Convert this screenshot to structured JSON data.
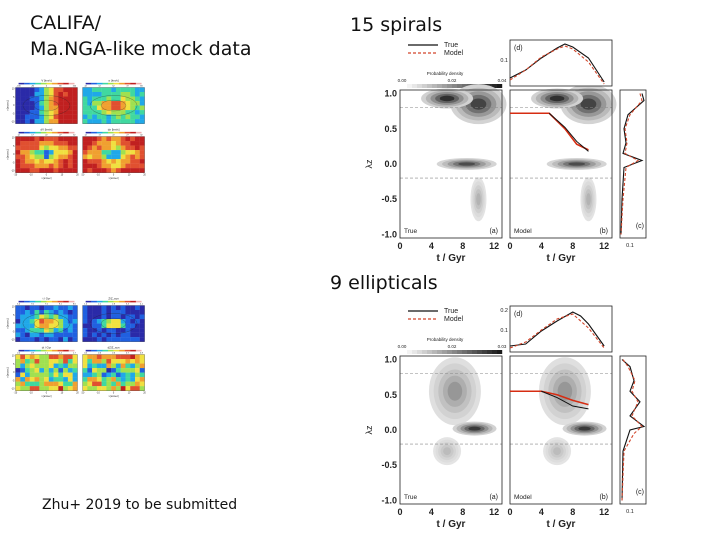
{
  "slide": {
    "title_line1": "CALIFA/",
    "title_line2": "Ma.NGA-like mock data",
    "label_spirals": "15 spirals",
    "label_ellipticals": "9 ellipticals",
    "credit": "Zhu+ 2019 to be submitted"
  },
  "maps_top": {
    "titles": [
      "V [km/s]",
      "σ [km/s]",
      "dV [km/s]",
      "dσ [km/s]"
    ],
    "cbar_ticks": [
      [
        "-180",
        "-80",
        "0",
        "80",
        "160"
      ],
      [
        "42",
        "52",
        "62",
        "72",
        "83"
      ],
      [
        "12",
        "17",
        "22",
        "27",
        "32"
      ],
      [
        "12",
        "17",
        "22",
        "27",
        "32"
      ]
    ],
    "yticks": [
      "10",
      "5",
      "0",
      "-5",
      "-10"
    ],
    "xticks": [
      "-20",
      "-10",
      "0",
      "10",
      "20"
    ],
    "ylabel": "y [arcsec]",
    "xlabel": "x [arcsec]"
  },
  "maps_bottom": {
    "titles": [
      "t / Gyr",
      "Z/Z_sun",
      "dt / Gyr",
      "dZ/Z_sun"
    ],
    "cbar_ticks": [
      [
        "6.4",
        "7.0",
        "7.5",
        "8.1",
        "8.6"
      ],
      [
        "1.4",
        "2.1",
        "2.8",
        "3.4",
        "4.1"
      ],
      [
        "0.5",
        "0.9",
        "1.1",
        "1.4",
        "1.7"
      ],
      [
        "0.5",
        "0.6",
        "0.6",
        "0.7",
        "0.8"
      ]
    ],
    "yticks": [
      "10",
      "5",
      "0",
      "-5",
      "-10"
    ],
    "xticks": [
      "-20",
      "-10",
      "0",
      "10",
      "20"
    ],
    "ylabel": "y [arcsec]",
    "xlabel": "x [arcsec]"
  },
  "spiral_plot": {
    "legend": [
      "True",
      "Model"
    ],
    "prob_label": "Probability density",
    "prob_ticks": [
      "0.00",
      "0.02",
      "0.04"
    ],
    "yticks": [
      "1.0",
      "0.5",
      "0.0",
      "-0.5",
      "-1.0"
    ],
    "xticks": [
      "0",
      "4",
      "8",
      "12"
    ],
    "ylabel": "λz",
    "xlabel": "t / Gyr",
    "panel_labels": [
      "(a)",
      "(b)",
      "(c)",
      "(d)"
    ],
    "panel_names": [
      "True",
      "Model"
    ],
    "d_tick": "0.1",
    "c_tick": "0.1"
  },
  "elliptical_plot": {
    "legend": [
      "True",
      "Model"
    ],
    "prob_label": "Probability density",
    "prob_ticks": [
      "0.00",
      "0.02",
      "0.03"
    ],
    "yticks": [
      "1.0",
      "0.5",
      "0.0",
      "-0.5",
      "-1.0"
    ],
    "xticks": [
      "0",
      "4",
      "8",
      "12"
    ],
    "ylabel": "λz",
    "xlabel": "t / Gyr",
    "panel_labels": [
      "(a)",
      "(b)",
      "(c)",
      "(d)"
    ],
    "panel_names": [
      "True",
      "Model"
    ],
    "d_ticks": [
      "0.2",
      "0.1"
    ],
    "c_tick": "0.1"
  },
  "colors": {
    "true_line": "#111111",
    "model_line": "#d2452a",
    "fit_line": "#d62c12"
  }
}
